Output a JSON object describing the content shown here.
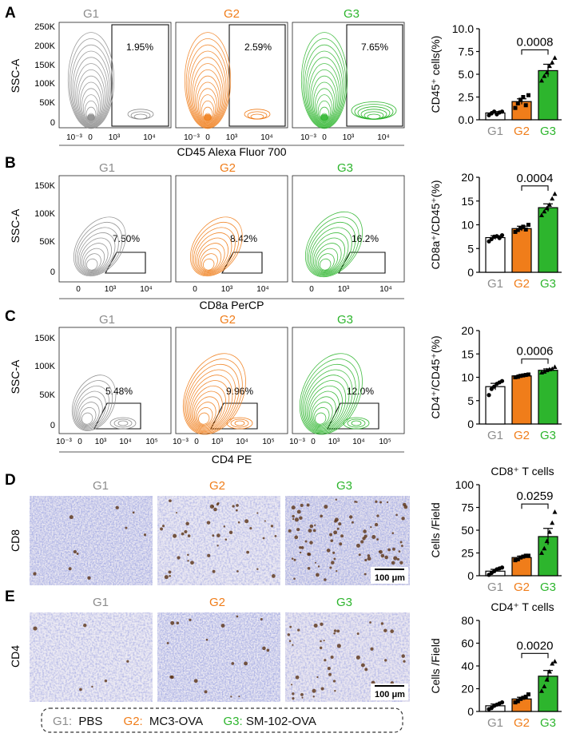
{
  "colors": {
    "g1": "#8c8c8c",
    "g2": "#f07d1a",
    "g3": "#2db52d",
    "black": "#111111"
  },
  "flow_rows": [
    {
      "letter": "A",
      "group_titles": [
        "G1",
        "G2",
        "G3"
      ],
      "ylabel": "SSC-A",
      "yticks": [
        "250K",
        "200K",
        "150K",
        "100K",
        "50K",
        "0"
      ],
      "xticks_left": [
        "10⁻³",
        "0",
        "10³",
        "10⁴"
      ],
      "gates": [
        "1.95%",
        "2.59%",
        "7.65%"
      ],
      "xlabel": "CD45 Alexa Fluor 700"
    },
    {
      "letter": "B",
      "group_titles": [
        "G1",
        "G2",
        "G3"
      ],
      "ylabel": "SSC-A",
      "yticks": [
        "150K",
        "100K",
        "50K",
        "0"
      ],
      "xticks": [
        "0",
        "10³",
        "10⁴"
      ],
      "gates": [
        "7.50%",
        "8.42%",
        "16.2%"
      ],
      "xlabel": "CD8a PerCP"
    },
    {
      "letter": "C",
      "group_titles": [
        "G1",
        "G2",
        "G3"
      ],
      "ylabel": "SSC-A",
      "yticks": [
        "150K",
        "100K",
        "50K",
        "0"
      ],
      "xticks": [
        "10⁻³",
        "0",
        "10³",
        "10⁴",
        "10⁵"
      ],
      "gates": [
        "5.48%",
        "9.96%",
        "12.0%"
      ],
      "xlabel": "CD4 PE"
    }
  ],
  "ihc_rows": [
    {
      "letter": "D",
      "group_titles": [
        "G1",
        "G2",
        "G3"
      ],
      "stain": "CD8",
      "scale_bar": "100 μm"
    },
    {
      "letter": "E",
      "group_titles": [
        "G1",
        "G2",
        "G3"
      ],
      "stain": "CD4",
      "scale_bar": "100 μm"
    }
  ],
  "legend": {
    "g1_key": "G1:",
    "g1_text": "PBS",
    "g2_key": "G2:",
    "g2_text": "MC3-OVA",
    "g3_key": "G3:",
    "g3_text": "SM-102-OVA"
  },
  "chart_data": [
    {
      "type": "bar",
      "panel": "A",
      "title": "",
      "ylabel": "CD45⁺ cells(%)",
      "categories": [
        "G1",
        "G2",
        "G3"
      ],
      "values": [
        0.75,
        2.0,
        5.4
      ],
      "errors": [
        0.15,
        0.3,
        0.7
      ],
      "ylim": [
        0,
        10
      ],
      "yticks": [
        "0.0",
        "2.5",
        "5.0",
        "7.5",
        "10.0"
      ],
      "pvalue": "0.0008",
      "points": [
        [
          0.5,
          0.7,
          0.9,
          0.6,
          0.8,
          0.9
        ],
        [
          1.3,
          1.8,
          2.2,
          2.5,
          1.6,
          2.7
        ],
        [
          4.3,
          4.8,
          5.2,
          5.9,
          6.3,
          6.8
        ]
      ]
    },
    {
      "type": "bar",
      "panel": "B",
      "title": "",
      "ylabel": "CD8a⁺/CD45⁺(%)",
      "categories": [
        "G1",
        "G2",
        "G3"
      ],
      "values": [
        7.3,
        9.2,
        13.6
      ],
      "errors": [
        0.4,
        0.5,
        0.8
      ],
      "ylim": [
        0,
        20
      ],
      "yticks": [
        "0",
        "5",
        "10",
        "15",
        "20"
      ],
      "pvalue": "0.0004",
      "points": [
        [
          6.5,
          7.0,
          7.5,
          7.6,
          7.2,
          7.8
        ],
        [
          8.5,
          8.9,
          9.3,
          9.6,
          9.0,
          10.0
        ],
        [
          12.0,
          12.8,
          13.5,
          14.2,
          15.5,
          16.5
        ]
      ]
    },
    {
      "type": "bar",
      "panel": "C",
      "title": "",
      "ylabel": "CD4⁺/CD45⁺(%)",
      "categories": [
        "G1",
        "G2",
        "G3"
      ],
      "values": [
        8.0,
        10.3,
        11.5
      ],
      "errors": [
        0.7,
        0.2,
        0.3
      ],
      "ylim": [
        0,
        20
      ],
      "yticks": [
        "0",
        "5",
        "10",
        "15",
        "20"
      ],
      "pvalue": "0.0006",
      "points": [
        [
          6.2,
          7.5,
          8.0,
          8.6,
          8.9,
          9.2
        ],
        [
          10.0,
          10.1,
          10.3,
          10.4,
          10.5,
          10.6
        ],
        [
          11.0,
          11.2,
          11.5,
          11.7,
          11.8,
          12.2
        ]
      ]
    },
    {
      "type": "bar",
      "panel": "D",
      "title": "CD8⁺ T cells",
      "ylabel": "Cells /Field",
      "categories": [
        "G1",
        "G2",
        "G3"
      ],
      "values": [
        5,
        20,
        43
      ],
      "errors": [
        2,
        1.5,
        9
      ],
      "ylim": [
        0,
        100
      ],
      "yticks": [
        "0",
        "25",
        "50",
        "75",
        "100"
      ],
      "pvalue": "0.0259",
      "points": [
        [
          1,
          3,
          5,
          7,
          8,
          9
        ],
        [
          17,
          18,
          20,
          21,
          22,
          22
        ],
        [
          25,
          30,
          38,
          48,
          58,
          70
        ]
      ]
    },
    {
      "type": "bar",
      "panel": "E",
      "title": "CD4⁺ T cells",
      "ylabel": "Cells /Field",
      "categories": [
        "G1",
        "G2",
        "G3"
      ],
      "values": [
        5,
        11,
        31
      ],
      "errors": [
        1.5,
        1.5,
        5
      ],
      "ylim": [
        0,
        80
      ],
      "yticks": [
        "0",
        "20",
        "40",
        "60",
        "80"
      ],
      "pvalue": "0.0020",
      "points": [
        [
          2,
          3,
          5,
          6,
          7,
          8
        ],
        [
          8,
          9,
          11,
          12,
          13,
          15
        ],
        [
          18,
          22,
          28,
          35,
          42,
          44
        ]
      ]
    }
  ]
}
